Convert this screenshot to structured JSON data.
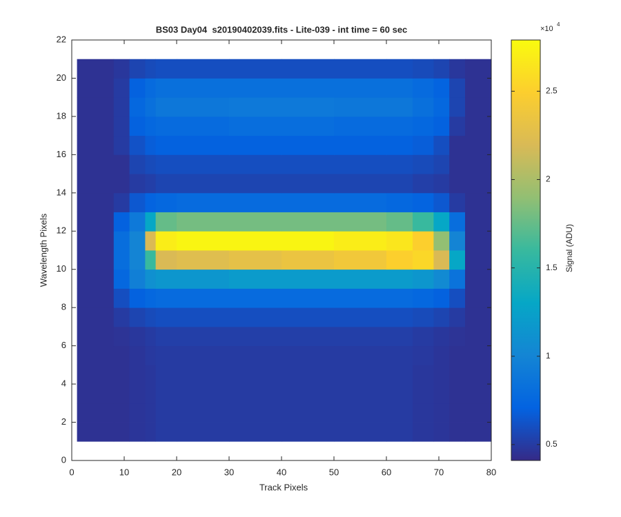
{
  "chart_data": {
    "type": "heatmap",
    "title": "BS03 Day04  s20190402039.fits - Lite-039 - int time = 60 sec",
    "x_label": "Track Pixels",
    "y_label": "Wavelength Pixels",
    "xlim": [
      0,
      80
    ],
    "xticks": [
      0,
      10,
      20,
      30,
      40,
      50,
      60,
      70,
      80
    ],
    "ylim": [
      0,
      22
    ],
    "yticks": [
      0,
      2,
      4,
      6,
      8,
      10,
      12,
      14,
      16,
      18,
      20,
      22
    ],
    "x_edges": [
      1,
      8,
      11,
      14,
      16,
      20,
      30,
      40,
      50,
      60,
      65,
      69,
      72,
      75,
      80
    ],
    "y_edges": [
      1,
      2,
      3,
      4,
      5,
      6,
      7,
      8,
      9,
      10,
      11,
      12,
      13,
      14,
      15,
      16,
      17,
      18,
      19,
      20,
      21
    ],
    "z": [
      [
        0.45,
        0.45,
        0.47,
        0.48,
        0.5,
        0.5,
        0.5,
        0.5,
        0.5,
        0.5,
        0.48,
        0.47,
        0.45,
        0.45
      ],
      [
        0.45,
        0.45,
        0.47,
        0.48,
        0.5,
        0.5,
        0.5,
        0.5,
        0.5,
        0.5,
        0.48,
        0.47,
        0.45,
        0.45
      ],
      [
        0.45,
        0.45,
        0.47,
        0.48,
        0.5,
        0.5,
        0.5,
        0.5,
        0.5,
        0.5,
        0.48,
        0.47,
        0.45,
        0.45
      ],
      [
        0.45,
        0.45,
        0.47,
        0.48,
        0.5,
        0.5,
        0.5,
        0.5,
        0.5,
        0.5,
        0.48,
        0.47,
        0.45,
        0.45
      ],
      [
        0.45,
        0.45,
        0.47,
        0.49,
        0.5,
        0.5,
        0.5,
        0.5,
        0.5,
        0.5,
        0.49,
        0.47,
        0.45,
        0.45
      ],
      [
        0.45,
        0.46,
        0.48,
        0.5,
        0.52,
        0.52,
        0.52,
        0.52,
        0.52,
        0.52,
        0.5,
        0.48,
        0.46,
        0.45
      ],
      [
        0.45,
        0.5,
        0.55,
        0.58,
        0.6,
        0.6,
        0.6,
        0.6,
        0.6,
        0.6,
        0.58,
        0.55,
        0.5,
        0.45
      ],
      [
        0.45,
        0.6,
        0.7,
        0.75,
        0.78,
        0.78,
        0.78,
        0.78,
        0.78,
        0.78,
        0.75,
        0.7,
        0.6,
        0.45
      ],
      [
        0.45,
        0.75,
        0.95,
        1.1,
        1.15,
        1.15,
        1.2,
        1.2,
        1.2,
        1.2,
        1.15,
        1.05,
        0.85,
        0.45
      ],
      [
        0.45,
        0.8,
        1.0,
        1.6,
        2.2,
        2.25,
        2.3,
        2.35,
        2.4,
        2.5,
        2.55,
        2.2,
        1.3,
        0.45
      ],
      [
        0.45,
        0.8,
        1.0,
        2.2,
        2.7,
        2.75,
        2.75,
        2.75,
        2.7,
        2.65,
        2.5,
        1.9,
        1.0,
        0.45
      ],
      [
        0.45,
        0.7,
        0.9,
        1.3,
        1.75,
        1.8,
        1.8,
        1.8,
        1.8,
        1.75,
        1.6,
        1.3,
        0.8,
        0.45
      ],
      [
        0.45,
        0.5,
        0.65,
        0.72,
        0.75,
        0.78,
        0.78,
        0.78,
        0.78,
        0.75,
        0.72,
        0.65,
        0.5,
        0.45
      ],
      [
        0.45,
        0.45,
        0.5,
        0.52,
        0.55,
        0.55,
        0.55,
        0.55,
        0.55,
        0.55,
        0.52,
        0.5,
        0.45,
        0.45
      ],
      [
        0.45,
        0.45,
        0.55,
        0.58,
        0.6,
        0.6,
        0.6,
        0.6,
        0.6,
        0.6,
        0.58,
        0.55,
        0.45,
        0.45
      ],
      [
        0.45,
        0.5,
        0.62,
        0.68,
        0.7,
        0.7,
        0.7,
        0.7,
        0.7,
        0.7,
        0.68,
        0.6,
        0.45,
        0.45
      ],
      [
        0.45,
        0.5,
        0.7,
        0.75,
        0.78,
        0.78,
        0.8,
        0.8,
        0.78,
        0.78,
        0.75,
        0.7,
        0.5,
        0.45
      ],
      [
        0.45,
        0.5,
        0.75,
        0.82,
        0.88,
        0.88,
        0.9,
        0.9,
        0.88,
        0.88,
        0.82,
        0.75,
        0.55,
        0.45
      ],
      [
        0.45,
        0.5,
        0.7,
        0.78,
        0.82,
        0.82,
        0.82,
        0.82,
        0.82,
        0.82,
        0.78,
        0.72,
        0.55,
        0.45
      ],
      [
        0.45,
        0.48,
        0.55,
        0.58,
        0.6,
        0.6,
        0.6,
        0.6,
        0.6,
        0.6,
        0.58,
        0.55,
        0.48,
        0.45
      ]
    ],
    "clim": [
      0.41,
      2.79
    ],
    "colormap": [
      "#352a87",
      "#0363e1",
      "#1485d4",
      "#06a7c6",
      "#38b99e",
      "#92bf73",
      "#d9ba56",
      "#fcce2e",
      "#f9fb0e"
    ],
    "colorbar": {
      "label": "Signal (ADU)",
      "ticks": [
        0.5,
        1,
        1.5,
        2,
        2.5
      ],
      "multiplier": "×10",
      "exponent": "4"
    }
  }
}
